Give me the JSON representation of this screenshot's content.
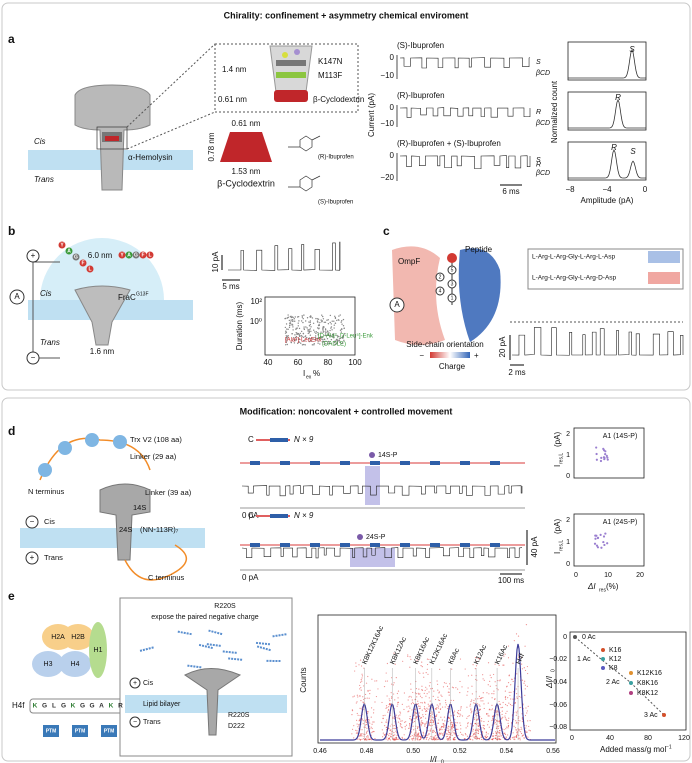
{
  "headers": [
    "Chirality: confinement + asymmetry chemical enviroment",
    "Modification: noncovalent + controlled movement"
  ],
  "a": {
    "label": "a",
    "zoom": [
      "1.4 nm",
      "0.61 nm",
      "K147N",
      "M113F",
      "β-Cyclodextrin"
    ],
    "pore": [
      "α-Hemolysin",
      "Cis",
      "Trans"
    ],
    "cd": [
      "0.61 nm",
      "0.78 nm",
      "1.53 nm",
      "β-Cyclodextrin"
    ],
    "drugs": [
      "(R)-Ibuprofen",
      "(S)-Ibuprofen"
    ],
    "traces": {
      "titles": [
        "(S)-Ibuprofen",
        "(R)-Ibuprofen",
        "(R)-Ibuprofen + (S)-Ibuprofen"
      ],
      "ylabel": "Current (pA)",
      "yticks": [
        [
          "0",
          "−10"
        ],
        [
          "0",
          "−10"
        ],
        [
          "0",
          "−20"
        ]
      ],
      "levels": [
        [
          "S",
          "βCD"
        ],
        [
          "R",
          "βCD"
        ],
        [
          "S",
          "R",
          "βCD"
        ]
      ],
      "scale": "6 ms"
    },
    "hist": {
      "ylabel": "Normalized count",
      "peaks": [
        [
          "S"
        ],
        [
          "R"
        ],
        [
          "R",
          "S"
        ]
      ],
      "xticks": [
        "−8",
        "−4",
        "0"
      ],
      "xlabel": "Amplitude (pA)"
    }
  },
  "b": {
    "label": "b",
    "diag": {
      "size": "6.0 nm",
      "frac": "FraC",
      "mut": "G13F",
      "cis": "Cis",
      "trans": "Trans",
      "pore": "1.6 nm",
      "plus": "+",
      "amp": "A",
      "minus": "−"
    },
    "peptide": [
      "Y",
      "A",
      "G",
      "F",
      "L"
    ],
    "trace": {
      "ybar": "10 pA",
      "xbar": "5 ms"
    },
    "scatter": {
      "ylabel": "Duration (ms)",
      "yticks": [
        "10²",
        "10⁰"
      ],
      "xticks": [
        "40",
        "60",
        "80",
        "100"
      ],
      "xlabel": [
        "I",
        "ex",
        "%"
      ],
      "groups": [
        "[Ala²]-LeuEnk",
        "[D-Ala², D-Leu⁵]-Enk",
        "(DADLE)"
      ]
    }
  },
  "c": {
    "label": "c",
    "texts": {
      "ompf": "OmpF",
      "peptide": "Peptide",
      "orient": "Side-chain orientation",
      "charge": "Charge",
      "minus": "−",
      "plus": "+",
      "amp": "A"
    },
    "sites": [
      "5",
      "3",
      "1",
      "4",
      "2"
    ],
    "seqs": [
      "L-Arg-L-Arg-Gly-L-Arg-L-Asp",
      "L-Arg-L-Arg-Gly-L-Arg-D-Asp"
    ],
    "ybar": "20 pA",
    "xbar": "2 ms"
  },
  "d": {
    "label": "d",
    "diag": [
      "Trx V2 (108 aa)",
      "Linker (29 aa)",
      "N terminus",
      "Cis",
      "−",
      "14S",
      "Linker (39 aa)",
      "24S",
      "(NN-113R)₇",
      "Trans",
      "+",
      "C terminus"
    ],
    "traces": [
      {
        "c": "C",
        "n": "N × 9",
        "site": "14S-P",
        "zero": "0 pA"
      },
      {
        "c": "C",
        "n": "N × 9",
        "site": "24S-P",
        "zero": "0 pA"
      }
    ],
    "ybar": "40 pA",
    "xbar": "100 ms",
    "scatter": {
      "titles": [
        "A1 (14S-P)",
        "A1 (24S-P)"
      ],
      "ylabel": [
        "I",
        "res,L",
        " (pA)"
      ],
      "yticks": [
        "2",
        "1",
        "0"
      ],
      "xticks": [
        "0",
        "10",
        "20"
      ],
      "xlabel": [
        "ΔI",
        "res",
        " (%)"
      ]
    }
  },
  "e": {
    "label": "e",
    "histones": [
      "H2A",
      "H2B",
      "H3",
      "H4",
      "H1"
    ],
    "tail": "H4f",
    "seq": [
      "K",
      "G",
      "L",
      "G",
      "K",
      "G",
      "G",
      "A",
      "K",
      "R"
    ],
    "ptm": "PTM",
    "box": [
      "R220S",
      "expose the paired negative charge",
      "Cis",
      "+",
      "Lipid bilayer",
      "−",
      "Trans",
      "R220S",
      "D222"
    ],
    "hist": {
      "ylabel": "Counts",
      "xticks": [
        "0.46",
        "0.48",
        "0.50",
        "0.52",
        "0.54",
        "0.56"
      ],
      "xlabel": [
        "I/I",
        "0"
      ],
      "peaks": [
        "K8K12K16Ac",
        "K8K12Ac",
        "K8K16Ac",
        "K12K16Ac",
        "K8Ac",
        "K12Ac",
        "K16Ac",
        "H4f"
      ]
    },
    "plot": {
      "ylabel": [
        "ΔI/I",
        "0"
      ],
      "yticks": [
        "0",
        "−0.02",
        "−0.04",
        "−0.06",
        "−0.08"
      ],
      "xticks": [
        "0",
        "40",
        "80",
        "120"
      ],
      "xlabel": [
        "Added mass/g mol",
        "−1"
      ],
      "labels": [
        "0 Ac",
        "1 Ac",
        "K16",
        "K12",
        "K8",
        "2 Ac",
        "K12K16",
        "K8K16",
        "K8K12",
        "3 Ac"
      ]
    }
  }
}
